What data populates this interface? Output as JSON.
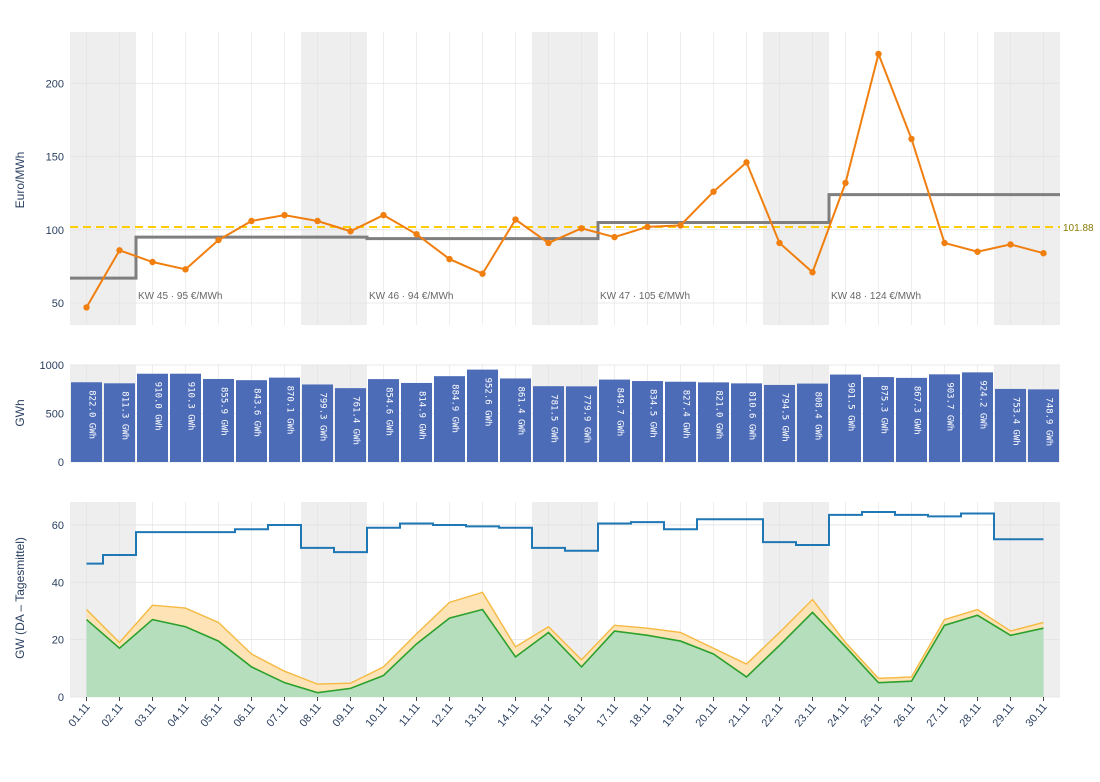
{
  "chart_data": [
    {
      "type": "line",
      "panel": "price",
      "ylabel": "Euro/MWh",
      "ylim": [
        35,
        235
      ],
      "yticks": [
        50,
        100,
        150,
        200
      ],
      "daily_price": {
        "color": "#f07f0f",
        "values": [
          47,
          86,
          78,
          73,
          93,
          106,
          110,
          106,
          99,
          110,
          97,
          80,
          70,
          107,
          91,
          101,
          95,
          102,
          103,
          126,
          146,
          91,
          71,
          132,
          220,
          162,
          91,
          85,
          90,
          84
        ]
      },
      "weekly_avg": {
        "color": "#7f7f7f",
        "segments": [
          {
            "from": 0,
            "to": 2,
            "value": 67
          },
          {
            "from": 2,
            "to": 9,
            "value": 95
          },
          {
            "from": 9,
            "to": 16,
            "value": 94
          },
          {
            "from": 16,
            "to": 23,
            "value": 105
          },
          {
            "from": 23,
            "to": 30,
            "value": 124
          }
        ]
      },
      "reference": {
        "value": 101.88,
        "label": "101.88",
        "color": "#ffcc00"
      },
      "week_labels": [
        {
          "day_index": 2,
          "text": "KW 45 · 95 €/MWh"
        },
        {
          "day_index": 9,
          "text": "KW 46 · 94 €/MWh"
        },
        {
          "day_index": 16,
          "text": "KW 47 · 105 €/MWh"
        },
        {
          "day_index": 23,
          "text": "KW 48 · 124 €/MWh"
        }
      ]
    },
    {
      "type": "bar",
      "panel": "volume",
      "ylabel": "GWh",
      "ylim": [
        0,
        1000
      ],
      "yticks": [
        0,
        500,
        1000
      ],
      "color": "#4c6cb8",
      "values": [
        822.0,
        811.3,
        910.0,
        910.3,
        855.9,
        843.6,
        870.1,
        799.3,
        761.4,
        854.6,
        814.9,
        884.9,
        952.6,
        861.4,
        781.5,
        779.9,
        849.7,
        834.5,
        827.4,
        821.0,
        810.6,
        794.5,
        808.4,
        901.5,
        875.3,
        867.3,
        903.7,
        924.2,
        753.4,
        748.9
      ],
      "labels": [
        "822.0 GWh",
        "811.3 GWh",
        "910.0 GWh",
        "910.3 GWh",
        "855.9 GWh",
        "843.6 GWh",
        "870.1 GWh",
        "799.3 GWh",
        "761.4 GWh",
        "854.6 GWh",
        "814.9 GWh",
        "884.9 GWh",
        "952.6 GWh",
        "861.4 GWh",
        "781.5 GWh",
        "779.9 GWh",
        "849.7 GWh",
        "834.5 GWh",
        "827.4 GWh",
        "821.0 GWh",
        "810.6 GWh",
        "794.5 GWh",
        "808.4 GWh",
        "901.5 GWh",
        "875.3 GWh",
        "867.3 GWh",
        "903.7 GWh",
        "924.2 GWh",
        "753.4 GWh",
        "748.9 GWh"
      ]
    },
    {
      "type": "area",
      "panel": "generation",
      "ylabel": "GW (DA – Tagesmittel)",
      "ylim": [
        0,
        68
      ],
      "yticks": [
        0,
        20,
        40,
        60
      ],
      "load_step": {
        "color": "#1f77b4",
        "values": [
          46.5,
          49.5,
          57.5,
          57.5,
          57.5,
          58.5,
          60,
          52,
          50.5,
          59,
          60.5,
          60,
          59.5,
          59,
          52,
          51,
          60.5,
          61,
          58.5,
          62,
          62,
          54,
          53,
          63.5,
          64.5,
          63.5,
          63,
          64,
          55,
          55
        ]
      },
      "upper_area": {
        "line_color": "#f5b942",
        "fill_color": "#fde3b5",
        "values": [
          30.5,
          19,
          32,
          31,
          26,
          15,
          9,
          4.5,
          4.8,
          10.5,
          22,
          33,
          36.5,
          17.5,
          24.5,
          13,
          25,
          24,
          22.5,
          17,
          11.5,
          22.5,
          34,
          19,
          6.5,
          7,
          27,
          30.5,
          23,
          26
        ]
      },
      "lower_area": {
        "line_color": "#2ca02c",
        "fill_color": "#b5dfbc",
        "values": [
          27,
          17,
          27,
          24.5,
          19.5,
          10.5,
          5,
          1.5,
          3,
          7.5,
          18.5,
          27.5,
          30.5,
          14,
          22.5,
          10.5,
          23,
          21.5,
          19.5,
          15,
          7,
          18,
          29.5,
          17.5,
          5,
          5.5,
          25,
          28.5,
          21.5,
          24
        ]
      }
    }
  ],
  "x_axis": {
    "tick_labels": [
      "01.11",
      "02.11",
      "03.11",
      "04.11",
      "05.11",
      "06.11",
      "07.11",
      "08.11",
      "09.11",
      "10.11",
      "11.11",
      "12.11",
      "13.11",
      "14.11",
      "15.11",
      "16.11",
      "17.11",
      "18.11",
      "19.11",
      "20.11",
      "21.11",
      "22.11",
      "23.11",
      "24.11",
      "25.11",
      "26.11",
      "27.11",
      "28.11",
      "29.11",
      "30.11"
    ],
    "weekend_day_pairs": [
      [
        0,
        1
      ],
      [
        7,
        8
      ],
      [
        14,
        15
      ],
      [
        21,
        22
      ],
      [
        28,
        29
      ]
    ],
    "weekend_color": "#eeeeee"
  }
}
